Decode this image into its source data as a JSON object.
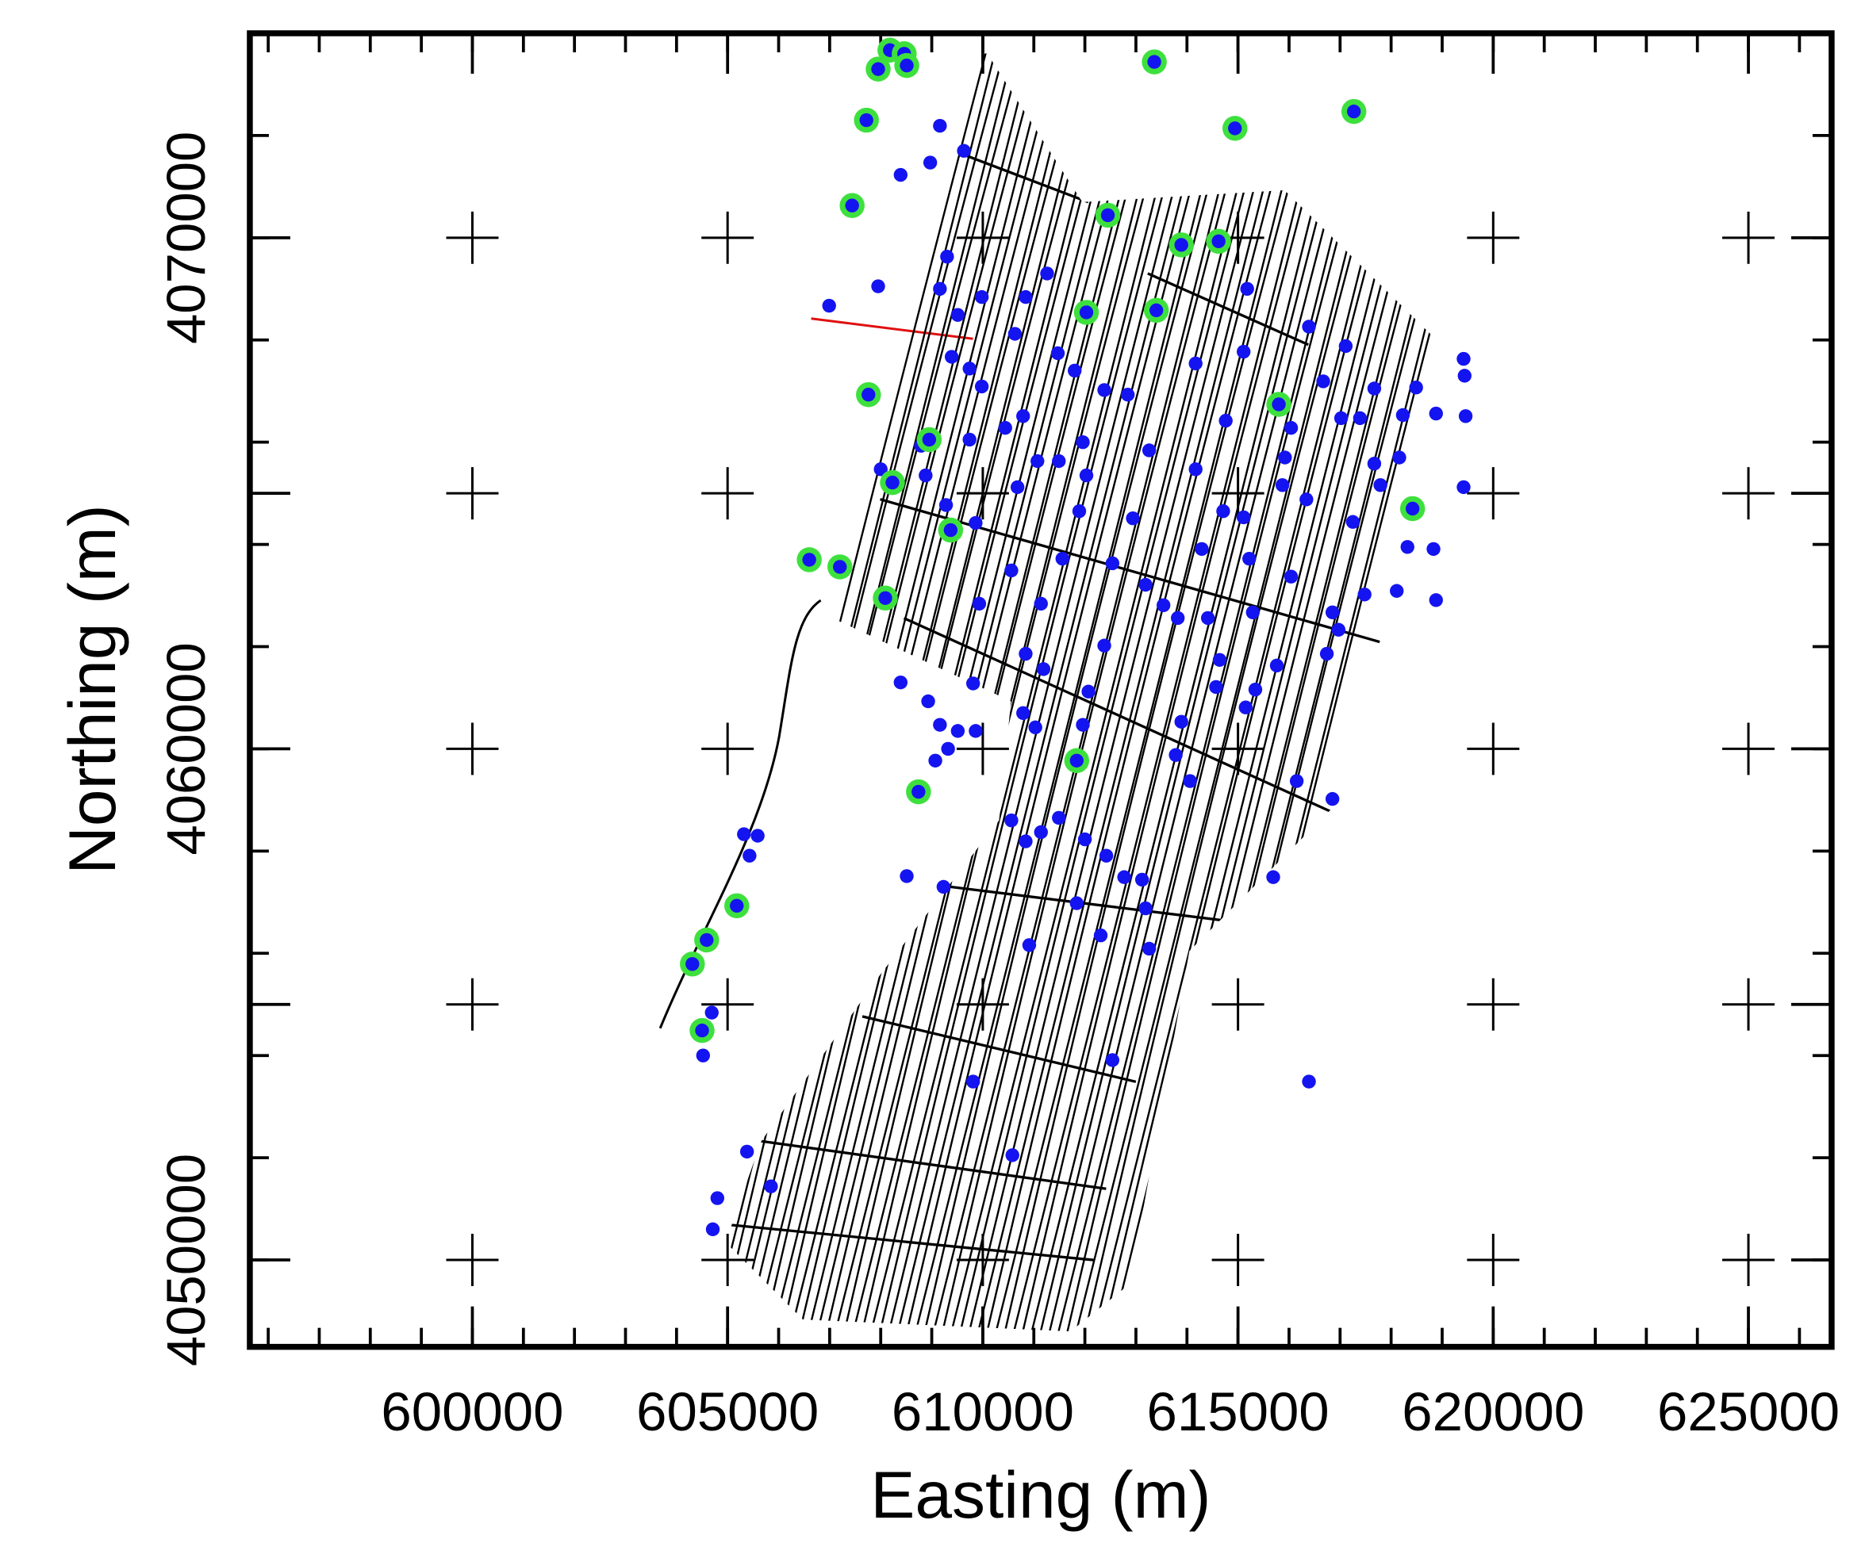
{
  "chart_data": {
    "type": "scatter",
    "xlabel": "Easting (m)",
    "ylabel": "Northing (m)",
    "xlim": [
      595640,
      626630
    ],
    "ylim": [
      4048300,
      4074000
    ],
    "xticks": [
      600000,
      605000,
      610000,
      615000,
      620000,
      625000
    ],
    "yticks": [
      4050000,
      {
        "value": 4055000,
        "label": null
      },
      4060000,
      {
        "value": 4065000,
        "label": null
      },
      4070000
    ],
    "xminor": 1000,
    "yminor": 2000,
    "grid": "cross",
    "series": [
      {
        "color": "#1414f0",
        "x": [
          609160,
          609630,
          608390,
          608970,
          606990,
          607950,
          609160,
          609300,
          609980,
          610840,
          611260,
          610630,
          609510,
          609390,
          609740,
          609980,
          611470,
          611800,
          612380,
          612840,
          615180,
          615110,
          614760,
          614170,
          616390,
          617110,
          616670,
          617670,
          618490,
          619420,
          619440,
          619460,
          618880,
          618230,
          617390,
          617020,
          618160,
          617670,
          617790,
          616040,
          615920,
          615870,
          616340,
          617250,
          618320,
          618830,
          619420,
          618880,
          618110,
          617480,
          616040,
          616850,
          616970,
          616740,
          615760,
          615340,
          615150,
          615290,
          614410,
          614640,
          614570,
          613890,
          613780,
          614060,
          616150,
          616850,
          615690,
          616390,
          613260,
          614710,
          615110,
          615220,
          614290,
          614170,
          613190,
          613540,
          613820,
          612940,
          612540,
          612380,
          611960,
          611890,
          611560,
          612030,
          611070,
          611490,
          610680,
          610440,
          610790,
          609740,
          608790,
          608880,
          608000,
          609280,
          609860,
          609930,
          610560,
          611140,
          610840,
          611190,
          612070,
          611960,
          610790,
          611030,
          609810,
          608930,
          609160,
          609510,
          609860,
          609320,
          609070,
          608390,
          610560,
          611140,
          610840,
          611490,
          612000,
          612420,
          612770,
          613120,
          613190,
          611840,
          612310,
          610910,
          613260,
          609230,
          608510,
          605320,
          605590,
          605430,
          604690,
          604520,
          612540,
          609810,
          605380,
          610580,
          605850,
          604800,
          604710
        ],
        "y": [
          4072190,
          4071700,
          4071230,
          4071470,
          4068670,
          4069050,
          4069000,
          4069630,
          4068840,
          4068840,
          4069300,
          4068120,
          4068490,
          4067670,
          4067440,
          4067090,
          4067740,
          4067400,
          4067020,
          4066930,
          4069000,
          4067770,
          4066420,
          4067540,
          4068260,
          4067880,
          4067190,
          4067050,
          4067070,
          4067630,
          4067300,
          4066510,
          4066560,
          4066530,
          4066470,
          4066470,
          4065700,
          4065580,
          4065160,
          4066280,
          4065700,
          4065160,
          4064880,
          4064440,
          4063950,
          4063910,
          4065120,
          4062910,
          4063090,
          4063020,
          4063370,
          4062670,
          4062330,
          4061860,
          4061630,
          4061160,
          4060810,
          4062670,
          4062560,
          4061740,
          4061210,
          4060530,
          4059880,
          4059370,
          4059370,
          4059020,
          4057490,
          4053490,
          4065840,
          4064650,
          4064530,
          4063720,
          4063910,
          4065470,
          4063210,
          4062810,
          4062560,
          4064510,
          4063630,
          4062020,
          4066000,
          4064650,
          4063720,
          4065350,
          4065630,
          4065630,
          4065120,
          4066280,
          4066510,
          4066050,
          4065930,
          4065350,
          4065470,
          4064770,
          4064420,
          4062840,
          4063490,
          4062840,
          4061860,
          4061560,
          4061120,
          4060470,
          4060700,
          4060420,
          4061280,
          4060930,
          4060470,
          4060350,
          4060350,
          4060000,
          4059770,
          4061300,
          4058600,
          4058370,
          4058190,
          4058650,
          4058230,
          4057910,
          4057490,
          4057440,
          4056880,
          4056980,
          4056350,
          4056160,
          4056090,
          4057300,
          4057510,
          4058330,
          4058300,
          4057910,
          4054840,
          4054000,
          4053910,
          4053490,
          4052120,
          4052050,
          4051440,
          4051210,
          4050600
        ]
      },
      {
        "color": "#1414f0",
        "edgecolor": "#3ee03e",
        "x": [
          608180,
          608460,
          607950,
          608510,
          613360,
          617270,
          614940,
          607720,
          607440,
          612450,
          613890,
          614620,
          612030,
          613400,
          607760,
          615800,
          608950,
          608230,
          618420,
          609370,
          606600,
          607200,
          608090,
          611840,
          608740,
          605180,
          604590,
          604310,
          604500
        ],
        "y": [
          4073670,
          4073600,
          4073300,
          4073370,
          4073440,
          4072470,
          4072140,
          4072300,
          4070630,
          4070440,
          4069860,
          4069930,
          4068540,
          4068580,
          4066930,
          4066740,
          4066050,
          4065210,
          4064700,
          4064280,
          4063700,
          4063560,
          4062950,
          4059770,
          4059160,
          4056930,
          4056260,
          4055790,
          4054490
        ]
      }
    ]
  }
}
